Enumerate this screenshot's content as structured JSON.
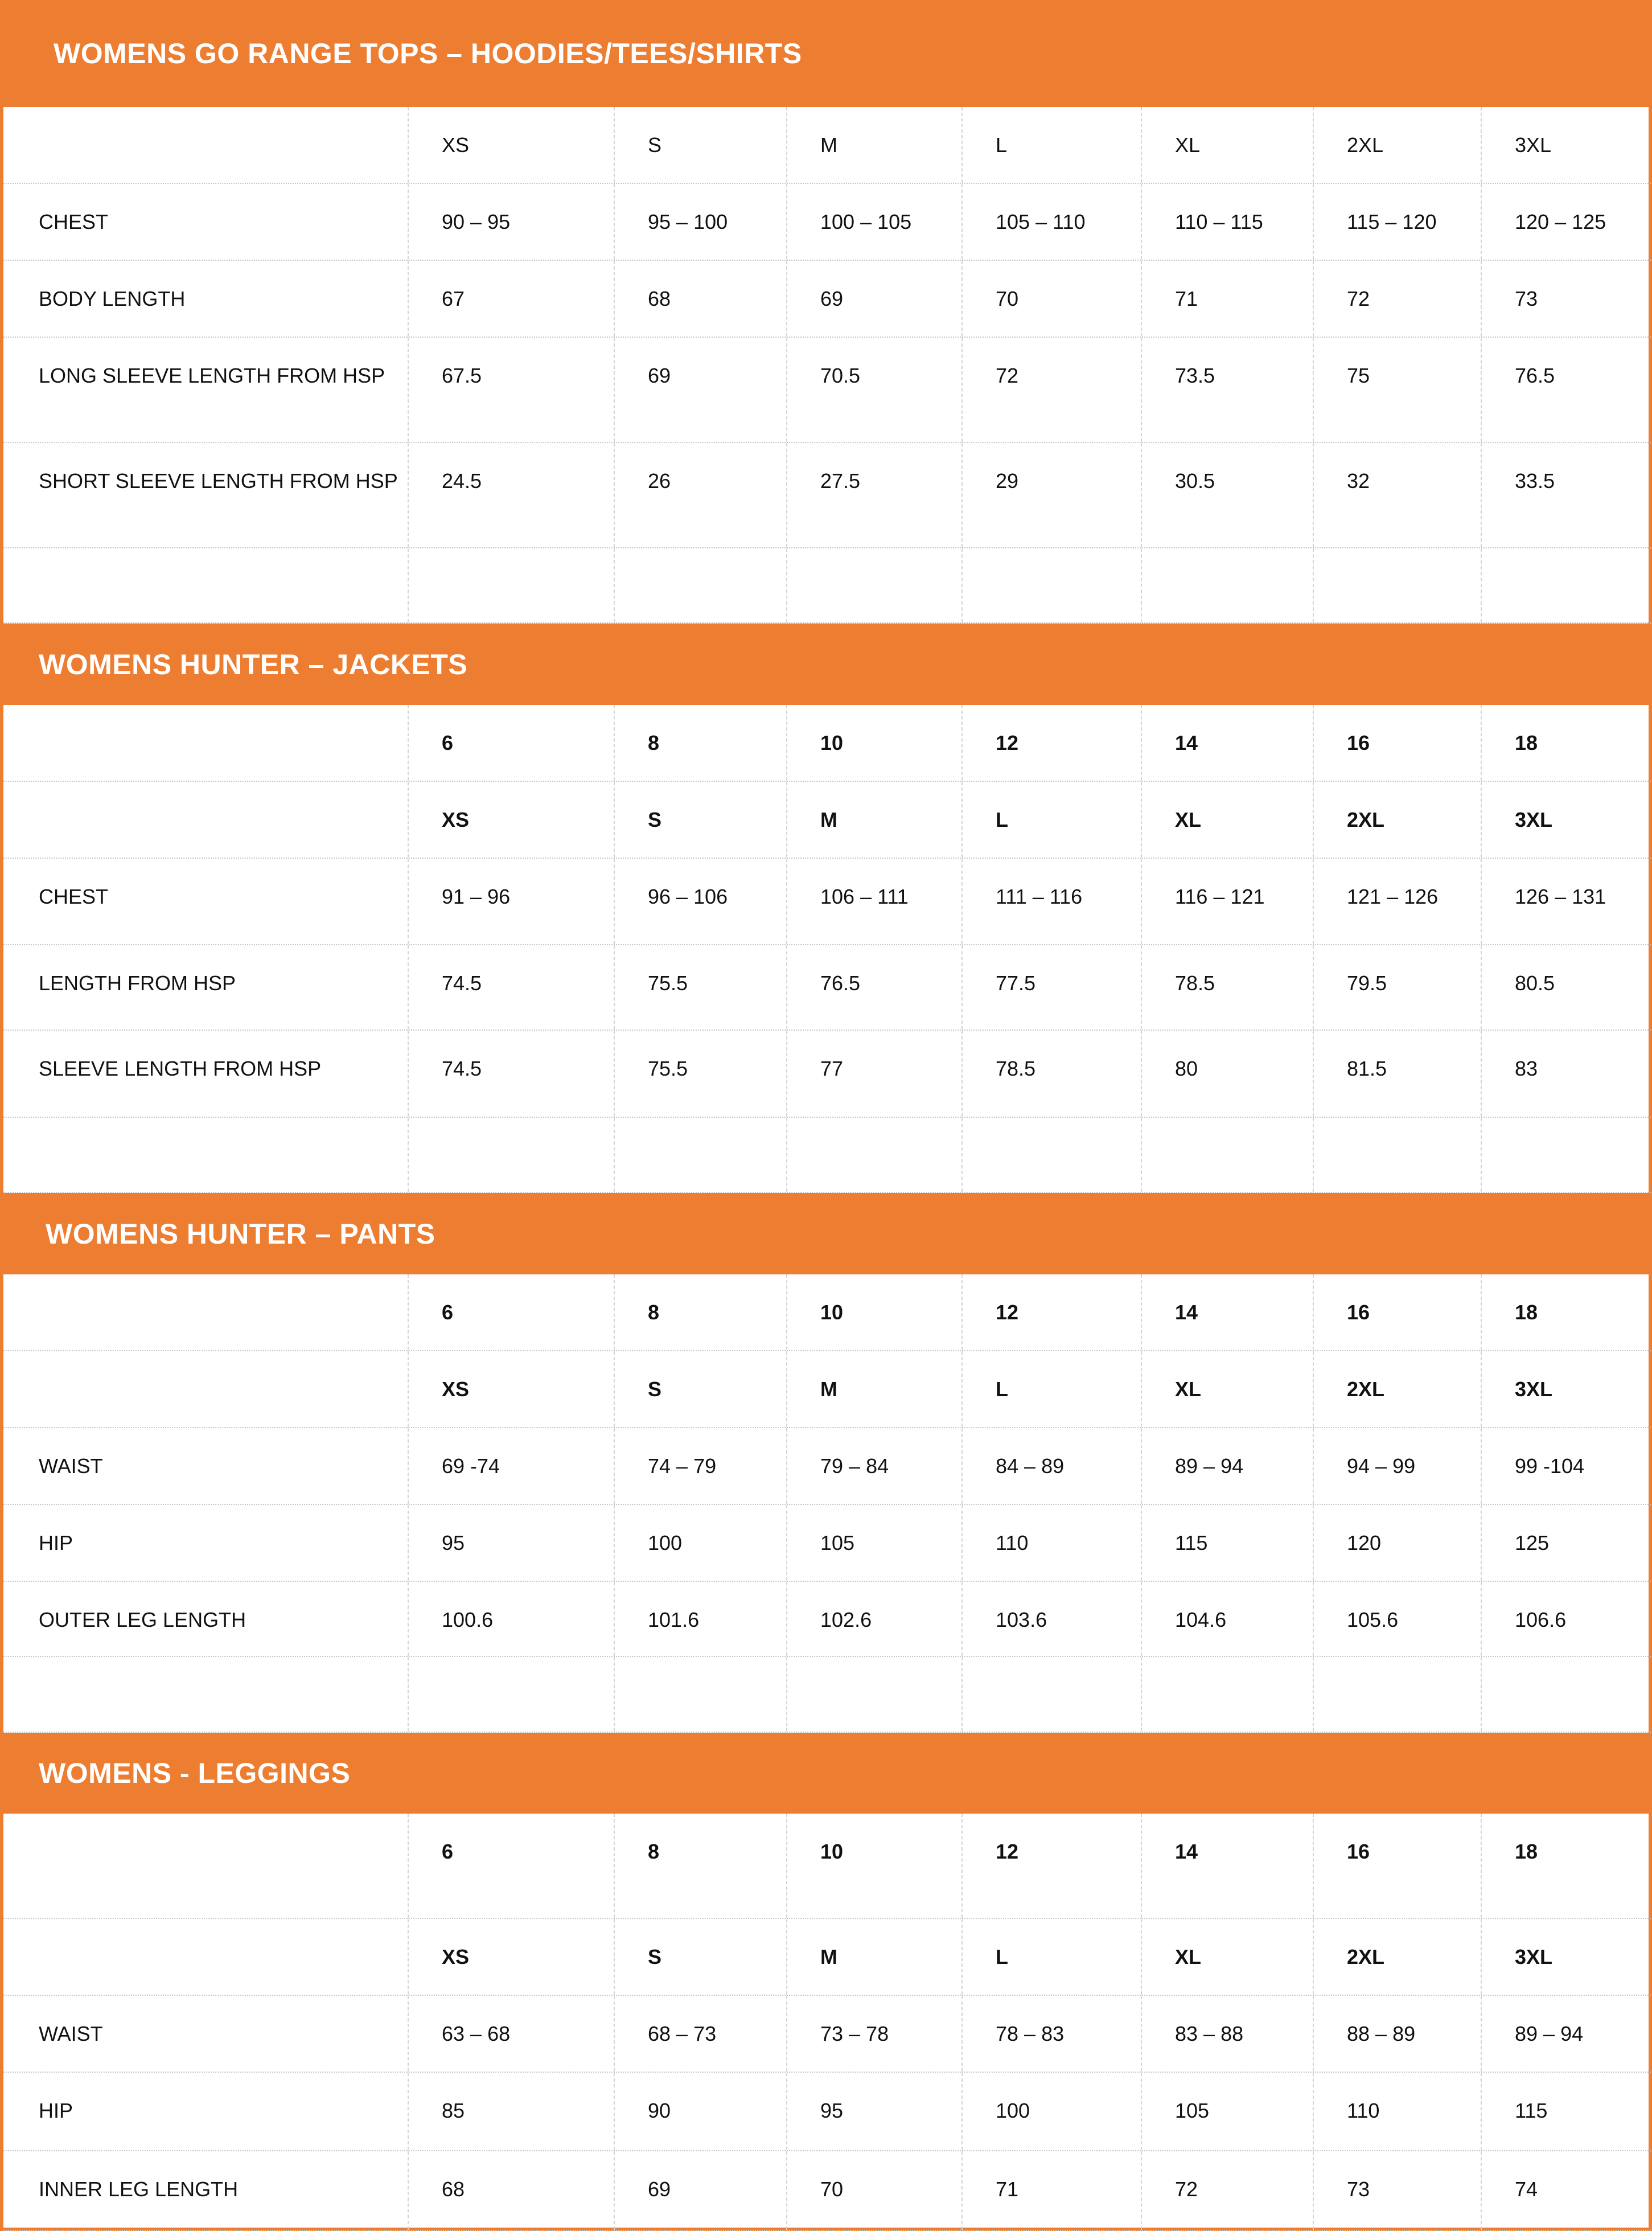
{
  "accent_color": "#ED7D31",
  "sections": [
    {
      "title": "WOMENS GO RANGE TOPS – HOODIES/TEES/SHIRTS",
      "rows": [
        {
          "label": "",
          "bold": false,
          "values": [
            "XS",
            "S",
            "M",
            "L",
            "XL",
            "2XL",
            "3XL"
          ]
        },
        {
          "label": "CHEST",
          "bold": false,
          "values": [
            "90 – 95",
            "95 – 100",
            "100 – 105",
            "105 – 110",
            "110 – 115",
            "115 – 120",
            "120 – 125"
          ]
        },
        {
          "label": "BODY LENGTH",
          "bold": false,
          "values": [
            "67",
            "68",
            "69",
            "70",
            "71",
            "72",
            "73"
          ]
        },
        {
          "label": "LONG SLEEVE LENGTH FROM HSP",
          "bold": false,
          "values": [
            "67.5",
            "69",
            "70.5",
            "72",
            "73.5",
            "75",
            "76.5"
          ]
        },
        {
          "label": "SHORT SLEEVE LENGTH FROM HSP",
          "bold": false,
          "values": [
            "24.5",
            "26",
            "27.5",
            "29",
            "30.5",
            "32",
            "33.5"
          ]
        },
        {
          "label": "",
          "bold": false,
          "values": [
            "",
            "",
            "",
            "",
            "",
            "",
            ""
          ]
        }
      ]
    },
    {
      "title": "WOMENS HUNTER –  JACKETS",
      "rows": [
        {
          "label": "",
          "bold": true,
          "values": [
            "6",
            "8",
            "10",
            "12",
            "14",
            "16",
            "18"
          ]
        },
        {
          "label": "",
          "bold": true,
          "values": [
            "XS",
            "S",
            "M",
            "L",
            "XL",
            "2XL",
            "3XL"
          ]
        },
        {
          "label": "CHEST",
          "bold": false,
          "values": [
            "91 – 96",
            "96 – 106",
            "106 – 111",
            "111 – 116",
            "116 – 121",
            "121 – 126",
            "126 – 131"
          ]
        },
        {
          "label": "LENGTH FROM HSP",
          "bold": false,
          "values": [
            "74.5",
            "75.5",
            "76.5",
            "77.5",
            "78.5",
            "79.5",
            "80.5"
          ]
        },
        {
          "label": "SLEEVE LENGTH FROM HSP",
          "bold": false,
          "values": [
            "74.5",
            "75.5",
            "77",
            "78.5",
            "80",
            "81.5",
            "83"
          ]
        },
        {
          "label": "",
          "bold": false,
          "values": [
            "",
            "",
            "",
            "",
            "",
            "",
            ""
          ]
        }
      ]
    },
    {
      "title": "WOMENS HUNTER – PANTS",
      "rows": [
        {
          "label": "",
          "bold": true,
          "values": [
            "6",
            "8",
            "10",
            "12",
            "14",
            "16",
            "18"
          ]
        },
        {
          "label": "",
          "bold": true,
          "values": [
            "XS",
            "S",
            "M",
            "L",
            "XL",
            "2XL",
            "3XL"
          ]
        },
        {
          "label": "WAIST",
          "bold": false,
          "values": [
            "69 -74",
            "74 – 79",
            "79 – 84",
            "84 – 89",
            "89 – 94",
            "94 – 99",
            "99 -104"
          ]
        },
        {
          "label": "HIP",
          "bold": false,
          "values": [
            "95",
            "100",
            "105",
            "110",
            "115",
            "120",
            "125"
          ]
        },
        {
          "label": "OUTER LEG LENGTH",
          "bold": false,
          "values": [
            "100.6",
            "101.6",
            "102.6",
            "103.6",
            "104.6",
            "105.6",
            "106.6"
          ]
        },
        {
          "label": "",
          "bold": false,
          "values": [
            "",
            "",
            "",
            "",
            "",
            "",
            ""
          ]
        }
      ]
    },
    {
      "title": "WOMENS -  LEGGINGS",
      "rows": [
        {
          "label": "",
          "bold": true,
          "values": [
            "6",
            "8",
            "10",
            "12",
            "14",
            "16",
            "18"
          ]
        },
        {
          "label": "",
          "bold": true,
          "values": [
            "XS",
            "S",
            "M",
            "L",
            "XL",
            "2XL",
            "3XL"
          ]
        },
        {
          "label": "WAIST",
          "bold": false,
          "values": [
            "63 – 68",
            "68 – 73",
            "73 – 78",
            "78 – 83",
            "83 – 88",
            "88 – 89",
            "89 – 94"
          ]
        },
        {
          "label": "HIP",
          "bold": false,
          "values": [
            "85",
            "90",
            "95",
            "100",
            "105",
            "110",
            "115"
          ]
        },
        {
          "label": "INNER LEG LENGTH",
          "bold": false,
          "values": [
            "68",
            "69",
            "70",
            "71",
            "72",
            "73",
            "74"
          ]
        }
      ]
    }
  ]
}
